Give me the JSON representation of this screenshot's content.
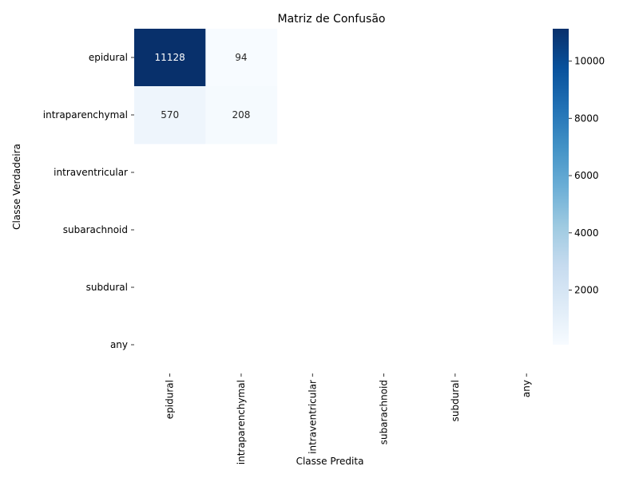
{
  "chart_data": {
    "type": "heatmap",
    "title": "Matriz de Confusão",
    "xlabel": "Classe Predita",
    "ylabel": "Classe Verdadeira",
    "x_categories": [
      "epidural",
      "intraparenchymal",
      "intraventricular",
      "subarachnoid",
      "subdural",
      "any"
    ],
    "y_categories": [
      "epidural",
      "intraparenchymal",
      "intraventricular",
      "subarachnoid",
      "subdural",
      "any"
    ],
    "cells": [
      {
        "row": 0,
        "col": 0,
        "value": 11128
      },
      {
        "row": 0,
        "col": 1,
        "value": 94
      },
      {
        "row": 1,
        "col": 0,
        "value": 570
      },
      {
        "row": 1,
        "col": 1,
        "value": 208
      }
    ],
    "colorbar": {
      "colormap": "Blues",
      "vmin": 94,
      "vmax": 11128,
      "ticks": [
        2000,
        4000,
        6000,
        8000,
        10000
      ]
    }
  }
}
